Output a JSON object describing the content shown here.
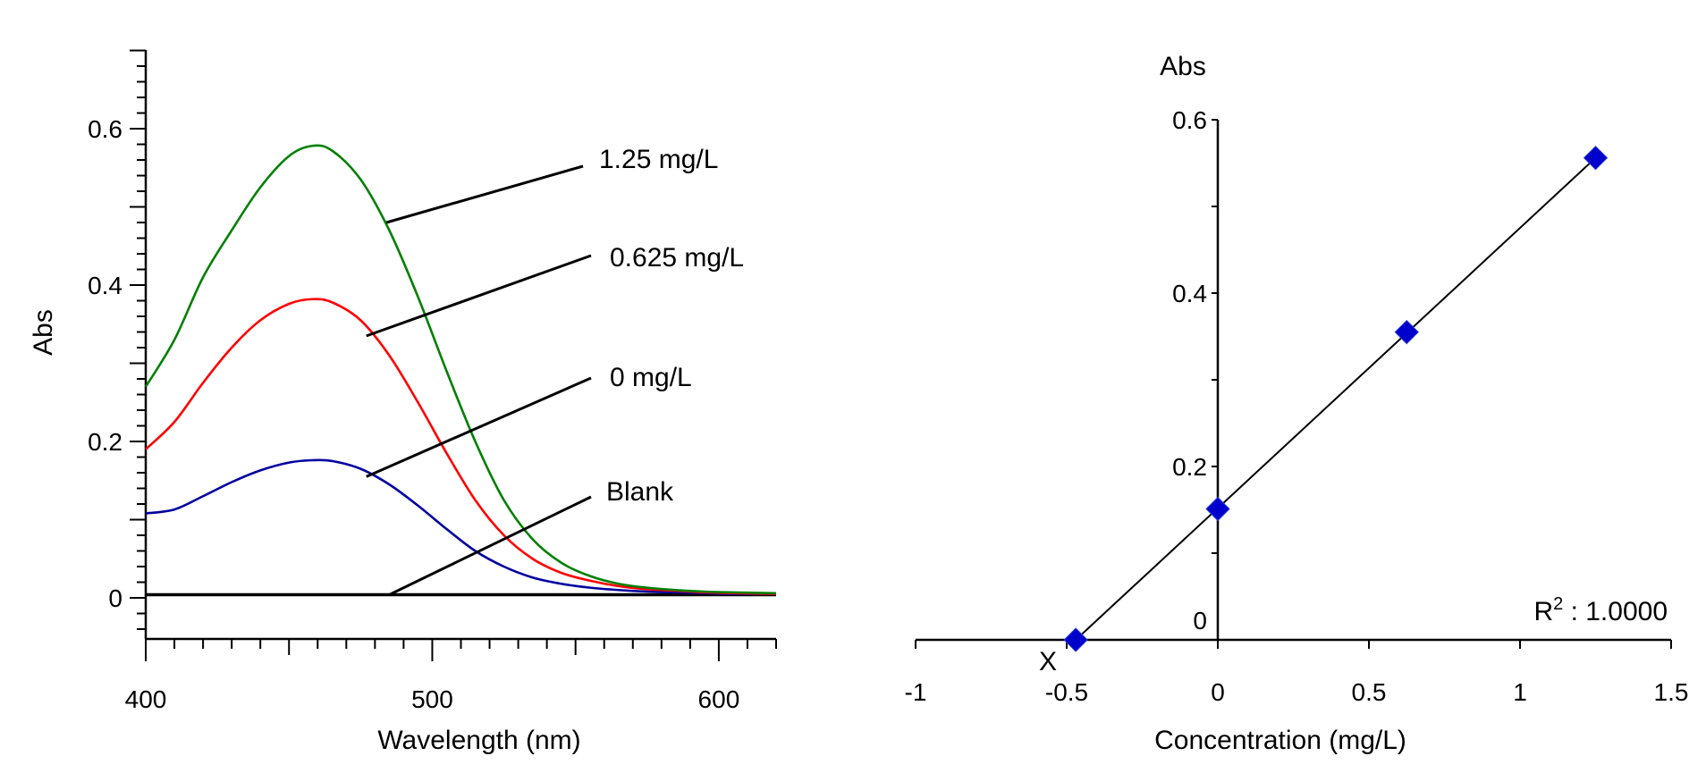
{
  "chart_data": [
    {
      "type": "line",
      "title": "",
      "xlabel": "Wavelength (nm)",
      "ylabel": "Abs",
      "xlim": [
        400,
        620
      ],
      "ylim": [
        -0.05,
        0.7
      ],
      "grid": false,
      "x_ticks": [
        400,
        500,
        600
      ],
      "x_tick_labels": [
        "400",
        "500",
        "600"
      ],
      "y_ticks": [
        0,
        0.2,
        0.4,
        0.6
      ],
      "y_tick_labels": [
        "0",
        "0.2",
        "0.4",
        "0.6"
      ],
      "x": [
        400,
        410,
        420,
        430,
        440,
        450,
        458,
        465,
        475,
        485,
        495,
        505,
        515,
        525,
        535,
        545,
        555,
        565,
        575,
        585,
        595,
        605,
        620
      ],
      "series": [
        {
          "name": "1.25 mg/L",
          "color": "#008000",
          "values": [
            0.27,
            0.33,
            0.41,
            0.47,
            0.525,
            0.565,
            0.578,
            0.572,
            0.535,
            0.47,
            0.385,
            0.29,
            0.2,
            0.125,
            0.075,
            0.045,
            0.028,
            0.018,
            0.013,
            0.01,
            0.008,
            0.007,
            0.006
          ]
        },
        {
          "name": "0.625 mg/L",
          "color": "#ff0000",
          "values": [
            0.19,
            0.225,
            0.275,
            0.32,
            0.355,
            0.376,
            0.382,
            0.378,
            0.355,
            0.31,
            0.25,
            0.185,
            0.125,
            0.08,
            0.05,
            0.032,
            0.022,
            0.015,
            0.011,
            0.009,
            0.007,
            0.006,
            0.005
          ]
        },
        {
          "name": "0 mg/L",
          "color": "#0000a0",
          "values": [
            0.108,
            0.113,
            0.13,
            0.148,
            0.163,
            0.173,
            0.176,
            0.175,
            0.165,
            0.145,
            0.118,
            0.088,
            0.06,
            0.04,
            0.026,
            0.018,
            0.013,
            0.01,
            0.008,
            0.007,
            0.006,
            0.005,
            0.005
          ]
        },
        {
          "name": "Blank",
          "color": "#000000",
          "values": [
            0.004,
            0.004,
            0.004,
            0.004,
            0.004,
            0.004,
            0.004,
            0.004,
            0.004,
            0.004,
            0.004,
            0.004,
            0.004,
            0.004,
            0.004,
            0.004,
            0.004,
            0.004,
            0.004,
            0.004,
            0.004,
            0.004,
            0.004
          ]
        }
      ],
      "annotations": [
        {
          "text": "1.25 mg/L",
          "points_to": {
            "x": 484,
            "y": 0.48
          }
        },
        {
          "text": "0.625 mg/L",
          "points_to": {
            "x": 477,
            "y": 0.335
          }
        },
        {
          "text": "0 mg/L",
          "points_to": {
            "x": 477,
            "y": 0.155
          }
        },
        {
          "text": "Blank",
          "points_to": {
            "x": 485,
            "y": 0.004
          }
        }
      ]
    },
    {
      "type": "scatter",
      "title": "",
      "xlabel": "Concentration (mg/L)",
      "ylabel": "Abs",
      "xlim": [
        -1,
        1.5
      ],
      "ylim": [
        0,
        0.6
      ],
      "grid": false,
      "x_ticks": [
        -1,
        -0.5,
        0,
        0.5,
        1,
        1.5
      ],
      "x_tick_labels": [
        "-1",
        "-0.5",
        "0",
        "0.5",
        "1",
        "1.5"
      ],
      "y_ticks": [
        0,
        0.2,
        0.4,
        0.6
      ],
      "y_tick_labels": [
        "0",
        "0.2",
        "0.4",
        "0.6"
      ],
      "points": [
        {
          "x": -0.47,
          "y": 0.0
        },
        {
          "x": 0,
          "y": 0.151
        },
        {
          "x": 0.625,
          "y": 0.355
        },
        {
          "x": 1.25,
          "y": 0.556
        }
      ],
      "marker_color": "#0000cc",
      "fit_line": {
        "from": [
          -0.47,
          0.0
        ],
        "to": [
          1.25,
          0.556
        ]
      },
      "x_intercept_label": "X",
      "r_squared_label": "R",
      "r_squared_sup": "2",
      "r_squared_value": " : 1.0000"
    }
  ]
}
